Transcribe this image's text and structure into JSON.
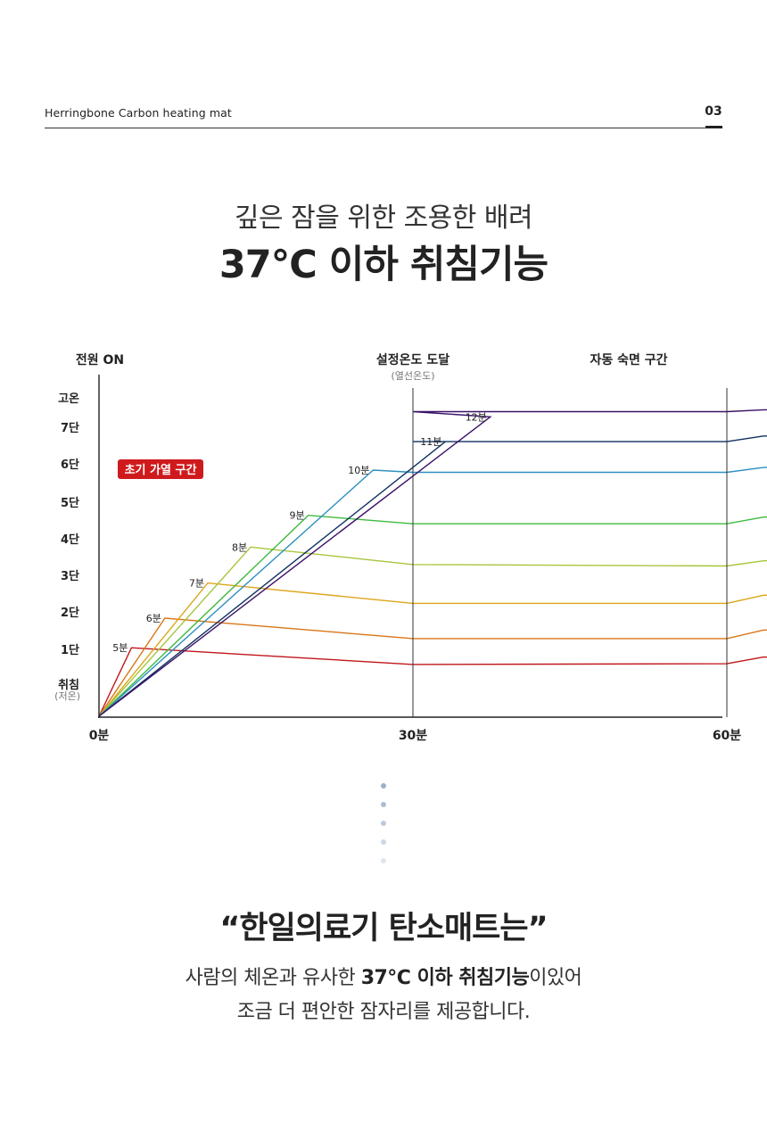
{
  "header": {
    "brand": "Herringbone Carbon heating mat",
    "page_number": "03"
  },
  "headline": {
    "line1": "깊은 잠을 위한 조용한 배려",
    "line2": "37℃ 이하 취침기능"
  },
  "chart_data": {
    "type": "line",
    "title": "",
    "xlabel": "",
    "ylabel": "",
    "x_ticks": [
      "0분",
      "30분",
      "60분"
    ],
    "y_ticks": [
      "취침",
      "1단",
      "2단",
      "3단",
      "4단",
      "5단",
      "6단",
      "7단",
      "고온"
    ],
    "y_tick_note": "(저온)",
    "annotations": {
      "power_on": "전원 ON",
      "target_reached": "설정온도 도달",
      "target_reached_sub": "(열선온도)",
      "auto_sleep": "자동 숙면 구간",
      "initial_heating": "초기 가열 구간"
    },
    "vlines": [
      30,
      60
    ],
    "xlim": [
      0,
      74
    ],
    "ylim": [
      0,
      9
    ],
    "series": [
      {
        "peak_label": "5분",
        "color": "#c0161b",
        "points": [
          [
            0,
            0
          ],
          [
            3.1,
            1.85
          ],
          [
            30,
            1.4
          ],
          [
            60,
            1.42
          ],
          [
            63.5,
            1.6
          ],
          [
            74,
            1.55
          ]
        ]
      },
      {
        "peak_label": "6분",
        "color": "#d87618",
        "points": [
          [
            0,
            0
          ],
          [
            6.3,
            2.65
          ],
          [
            30,
            2.1
          ],
          [
            60,
            2.1
          ],
          [
            63.5,
            2.33
          ],
          [
            74,
            2.33
          ]
        ]
      },
      {
        "peak_label": "7분",
        "color": "#dca619",
        "points": [
          [
            0,
            0
          ],
          [
            10.4,
            3.6
          ],
          [
            30,
            3.05
          ],
          [
            60,
            3.05
          ],
          [
            63.5,
            3.27
          ],
          [
            74,
            3.27
          ]
        ]
      },
      {
        "peak_label": "8분",
        "color": "#a7c53c",
        "points": [
          [
            0,
            0
          ],
          [
            14.5,
            4.57
          ],
          [
            30,
            4.1
          ],
          [
            60,
            4.06
          ],
          [
            63.5,
            4.2
          ],
          [
            74,
            4.2
          ]
        ]
      },
      {
        "peak_label": "9분",
        "color": "#3fba3e",
        "points": [
          [
            0,
            0
          ],
          [
            20.0,
            5.43
          ],
          [
            30,
            5.2
          ],
          [
            60,
            5.2
          ],
          [
            63.5,
            5.38
          ],
          [
            74,
            5.38
          ]
        ]
      },
      {
        "peak_label": "10분",
        "color": "#2f8fc0",
        "points": [
          [
            0,
            0
          ],
          [
            26.2,
            6.65
          ],
          [
            30,
            6.59
          ],
          [
            60,
            6.59
          ],
          [
            63.5,
            6.72
          ],
          [
            74,
            6.72
          ]
        ]
      },
      {
        "peak_label": "11분",
        "color": "#0f3060",
        "points": [
          [
            0,
            0
          ],
          [
            33.1,
            7.42
          ],
          [
            30,
            7.42
          ],
          [
            60,
            7.42
          ],
          [
            63.5,
            7.57
          ],
          [
            74,
            7.57
          ]
        ]
      },
      {
        "peak_label": "12분",
        "color": "#3a1268",
        "points": [
          [
            0,
            0
          ],
          [
            37.4,
            8.09
          ],
          [
            30,
            8.23
          ],
          [
            60,
            8.23
          ],
          [
            63.5,
            8.28
          ],
          [
            74,
            8.28
          ]
        ]
      }
    ]
  },
  "pager_dots": [
    "#9fb0c8",
    "#adbdd2",
    "#bccadb",
    "#cdd8e5",
    "#dfe6ef"
  ],
  "bottom": {
    "quote": "“한일의료기 탄소매트는”",
    "desc_line1_pre": "사람의 체온과 유사한 ",
    "desc_line1_bold": "37℃ 이하 취침기능",
    "desc_line1_post": "이있어",
    "desc_line2": "조금 더 편안한 잠자리를 제공합니다."
  }
}
